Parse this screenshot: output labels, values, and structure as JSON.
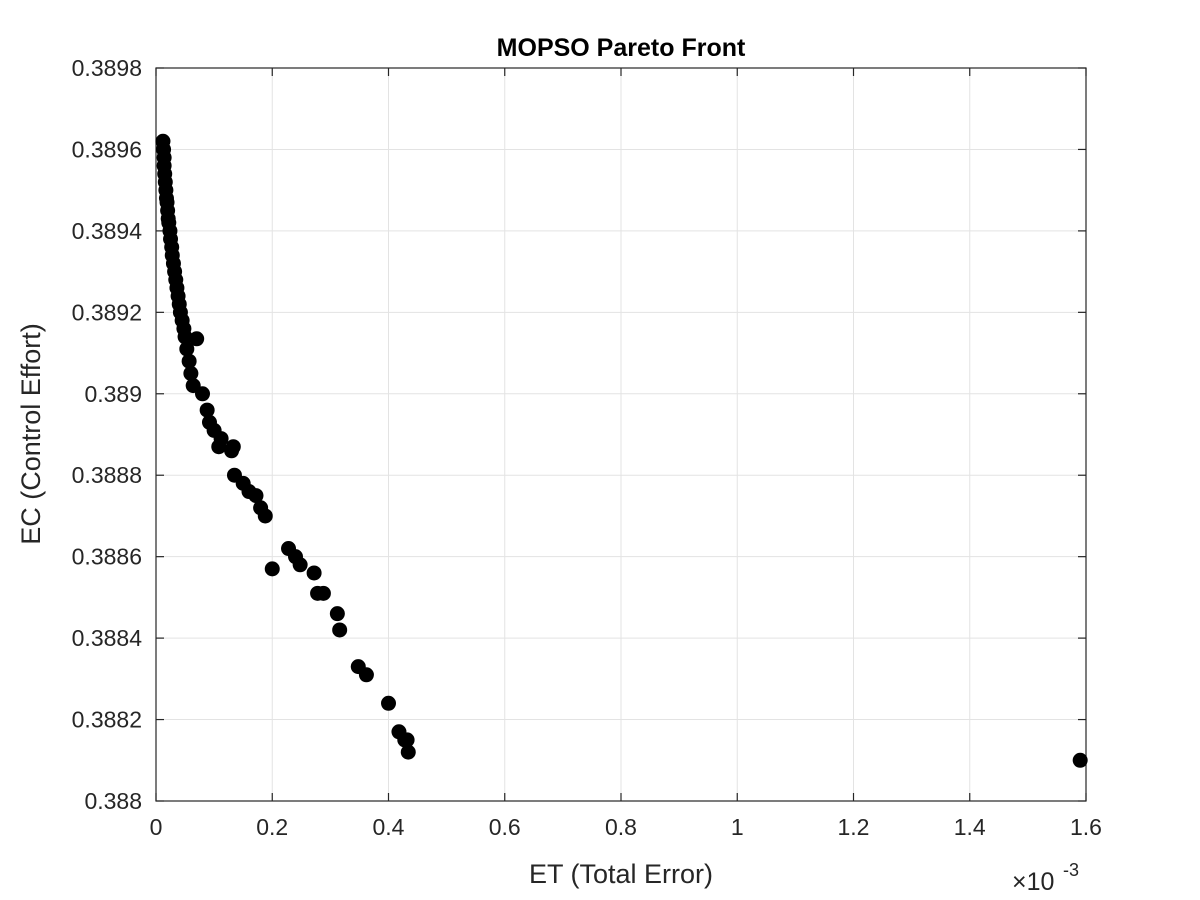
{
  "chart_data": {
    "type": "scatter",
    "title": "MOPSO Pareto Front",
    "xlabel": "ET (Total Error)",
    "ylabel": "EC (Control Effort)",
    "x_exponent_base": "×10",
    "x_exponent_power": "-3",
    "xlim": [
      0,
      1.6
    ],
    "ylim": [
      0.388,
      0.3898
    ],
    "xticks": [
      0,
      0.2,
      0.4,
      0.6,
      0.8,
      1,
      1.2,
      1.4,
      1.6
    ],
    "xtick_labels": [
      "0",
      "0.2",
      "0.4",
      "0.6",
      "0.8",
      "1",
      "1.2",
      "1.4",
      "1.6"
    ],
    "yticks": [
      0.388,
      0.3882,
      0.3884,
      0.3886,
      0.3888,
      0.389,
      0.3892,
      0.3894,
      0.3896,
      0.3898
    ],
    "ytick_labels": [
      "0.388",
      "0.3882",
      "0.3884",
      "0.3886",
      "0.3888",
      "0.389",
      "0.3892",
      "0.3894",
      "0.3896",
      "0.3898"
    ],
    "grid": true,
    "marker_color": "#000000",
    "points": [
      [
        0.012,
        0.38962
      ],
      [
        0.013,
        0.3896
      ],
      [
        0.014,
        0.38958
      ],
      [
        0.014,
        0.38956
      ],
      [
        0.015,
        0.38954
      ],
      [
        0.016,
        0.38952
      ],
      [
        0.017,
        0.3895
      ],
      [
        0.018,
        0.38948
      ],
      [
        0.019,
        0.38947
      ],
      [
        0.02,
        0.38945
      ],
      [
        0.021,
        0.38943
      ],
      [
        0.022,
        0.38942
      ],
      [
        0.024,
        0.3894
      ],
      [
        0.025,
        0.38938
      ],
      [
        0.027,
        0.38936
      ],
      [
        0.028,
        0.38934
      ],
      [
        0.03,
        0.38932
      ],
      [
        0.032,
        0.3893
      ],
      [
        0.034,
        0.38928
      ],
      [
        0.036,
        0.38926
      ],
      [
        0.038,
        0.38924
      ],
      [
        0.04,
        0.38922
      ],
      [
        0.042,
        0.3892
      ],
      [
        0.045,
        0.38918
      ],
      [
        0.048,
        0.38916
      ],
      [
        0.05,
        0.38914
      ],
      [
        0.053,
        0.38911
      ],
      [
        0.057,
        0.38908
      ],
      [
        0.06,
        0.38905
      ],
      [
        0.064,
        0.38902
      ],
      [
        0.07,
        0.389135
      ],
      [
        0.08,
        0.389
      ],
      [
        0.088,
        0.38896
      ],
      [
        0.092,
        0.38893
      ],
      [
        0.1,
        0.38891
      ],
      [
        0.108,
        0.38887
      ],
      [
        0.112,
        0.38889
      ],
      [
        0.13,
        0.38886
      ],
      [
        0.133,
        0.38887
      ],
      [
        0.135,
        0.3888
      ],
      [
        0.15,
        0.38878
      ],
      [
        0.16,
        0.38876
      ],
      [
        0.172,
        0.38875
      ],
      [
        0.18,
        0.38872
      ],
      [
        0.188,
        0.3887
      ],
      [
        0.2,
        0.38857
      ],
      [
        0.228,
        0.38862
      ],
      [
        0.24,
        0.3886
      ],
      [
        0.248,
        0.38858
      ],
      [
        0.272,
        0.38856
      ],
      [
        0.278,
        0.38851
      ],
      [
        0.288,
        0.38851
      ],
      [
        0.312,
        0.38846
      ],
      [
        0.316,
        0.38842
      ],
      [
        0.348,
        0.38833
      ],
      [
        0.362,
        0.38831
      ],
      [
        0.4,
        0.38824
      ],
      [
        0.418,
        0.38817
      ],
      [
        0.428,
        0.38815
      ],
      [
        0.432,
        0.38815
      ],
      [
        0.434,
        0.38812
      ],
      [
        1.59,
        0.3881
      ]
    ]
  }
}
